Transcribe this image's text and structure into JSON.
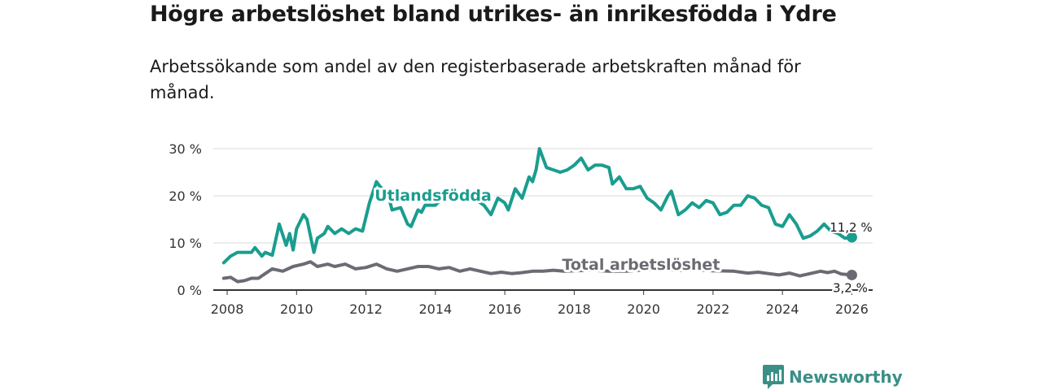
{
  "title": "Högre arbetslöshet bland utrikes- än inrikesfödda i Ydre",
  "subtitle": "Arbetssökande som andel av den registerbaserade arbetskraften månad för månad.",
  "brand": {
    "name": "Newsworthy",
    "icon": "newsworthy-logo-icon",
    "color": "#3a8f86"
  },
  "chart_data": {
    "type": "line",
    "title": "Högre arbetslöshet bland utrikes- än inrikesfödda i Ydre",
    "xlabel": "",
    "ylabel": "",
    "xlim": [
      2007.6,
      2026.6
    ],
    "ylim": [
      0,
      30
    ],
    "grid": true,
    "yticks": [
      {
        "value": 0,
        "label": "0 %"
      },
      {
        "value": 10,
        "label": "10 %"
      },
      {
        "value": 20,
        "label": "20 %"
      },
      {
        "value": 30,
        "label": "30 %"
      }
    ],
    "xticks": [
      "2008",
      "2010",
      "2012",
      "2014",
      "2016",
      "2018",
      "2020",
      "2022",
      "2024",
      "2026"
    ],
    "series": [
      {
        "name": "Utlandsfödda",
        "color": "#1a9d8f",
        "end_label": "11,2 %",
        "points": [
          [
            2007.9,
            5.8
          ],
          [
            2008.1,
            7.2
          ],
          [
            2008.3,
            8.0
          ],
          [
            2008.5,
            8.0
          ],
          [
            2008.7,
            8.0
          ],
          [
            2008.8,
            9.0
          ],
          [
            2009.0,
            7.2
          ],
          [
            2009.1,
            8.0
          ],
          [
            2009.3,
            7.4
          ],
          [
            2009.5,
            14.0
          ],
          [
            2009.7,
            9.5
          ],
          [
            2009.8,
            12.0
          ],
          [
            2009.9,
            8.5
          ],
          [
            2010.0,
            13.0
          ],
          [
            2010.2,
            16.0
          ],
          [
            2010.3,
            15.0
          ],
          [
            2010.5,
            8.0
          ],
          [
            2010.6,
            11.0
          ],
          [
            2010.8,
            12.0
          ],
          [
            2010.9,
            13.5
          ],
          [
            2011.1,
            12.0
          ],
          [
            2011.3,
            13.0
          ],
          [
            2011.5,
            12.0
          ],
          [
            2011.7,
            13.0
          ],
          [
            2011.9,
            12.5
          ],
          [
            2012.1,
            18.5
          ],
          [
            2012.3,
            23.0
          ],
          [
            2012.4,
            22.0
          ],
          [
            2012.55,
            21.0
          ],
          [
            2012.7,
            18.5
          ],
          [
            2012.75,
            17.0
          ],
          [
            2013.0,
            17.5
          ],
          [
            2013.2,
            14.0
          ],
          [
            2013.3,
            13.5
          ],
          [
            2013.5,
            17.0
          ],
          [
            2013.6,
            16.5
          ],
          [
            2013.7,
            18.0
          ],
          [
            2014.0,
            18.0
          ],
          [
            2014.2,
            19.5
          ],
          [
            2014.4,
            20.0
          ],
          [
            2015.0,
            20.0
          ],
          [
            2015.4,
            18.0
          ],
          [
            2015.6,
            16.0
          ],
          [
            2015.8,
            19.5
          ],
          [
            2016.0,
            18.5
          ],
          [
            2016.1,
            17.0
          ],
          [
            2016.3,
            21.5
          ],
          [
            2016.5,
            19.5
          ],
          [
            2016.7,
            24.0
          ],
          [
            2016.8,
            23.0
          ],
          [
            2016.9,
            25.5
          ],
          [
            2017.0,
            30.0
          ],
          [
            2017.2,
            26.0
          ],
          [
            2017.4,
            25.5
          ],
          [
            2017.6,
            25.0
          ],
          [
            2017.8,
            25.5
          ],
          [
            2018.0,
            26.5
          ],
          [
            2018.2,
            28.0
          ],
          [
            2018.4,
            25.5
          ],
          [
            2018.6,
            26.5
          ],
          [
            2018.8,
            26.5
          ],
          [
            2019.0,
            26.0
          ],
          [
            2019.1,
            22.5
          ],
          [
            2019.3,
            24.0
          ],
          [
            2019.5,
            21.5
          ],
          [
            2019.7,
            21.5
          ],
          [
            2019.9,
            22.0
          ],
          [
            2020.1,
            19.5
          ],
          [
            2020.3,
            18.5
          ],
          [
            2020.5,
            17.0
          ],
          [
            2020.7,
            20.0
          ],
          [
            2020.8,
            21.0
          ],
          [
            2021.0,
            16.0
          ],
          [
            2021.2,
            17.0
          ],
          [
            2021.4,
            18.5
          ],
          [
            2021.6,
            17.5
          ],
          [
            2021.8,
            19.0
          ],
          [
            2022.0,
            18.5
          ],
          [
            2022.2,
            16.0
          ],
          [
            2022.4,
            16.5
          ],
          [
            2022.6,
            18.0
          ],
          [
            2022.8,
            18.0
          ],
          [
            2023.0,
            20.0
          ],
          [
            2023.2,
            19.5
          ],
          [
            2023.4,
            18.0
          ],
          [
            2023.6,
            17.5
          ],
          [
            2023.8,
            14.0
          ],
          [
            2024.0,
            13.5
          ],
          [
            2024.2,
            16.0
          ],
          [
            2024.4,
            14.0
          ],
          [
            2024.6,
            11.0
          ],
          [
            2024.8,
            11.5
          ],
          [
            2025.0,
            12.5
          ],
          [
            2025.2,
            14.0
          ],
          [
            2025.4,
            12.5
          ],
          [
            2025.6,
            12.0
          ],
          [
            2025.8,
            11.0
          ],
          [
            2026.0,
            11.2
          ]
        ]
      },
      {
        "name": "Total arbetslöshet",
        "color": "#6b6b73",
        "end_label": "3,2 %",
        "points": [
          [
            2007.9,
            2.5
          ],
          [
            2008.1,
            2.7
          ],
          [
            2008.3,
            1.8
          ],
          [
            2008.5,
            2.0
          ],
          [
            2008.7,
            2.5
          ],
          [
            2008.9,
            2.5
          ],
          [
            2009.1,
            3.5
          ],
          [
            2009.3,
            4.5
          ],
          [
            2009.6,
            4.0
          ],
          [
            2009.9,
            5.0
          ],
          [
            2010.2,
            5.5
          ],
          [
            2010.4,
            6.0
          ],
          [
            2010.6,
            5.0
          ],
          [
            2010.9,
            5.5
          ],
          [
            2011.1,
            5.0
          ],
          [
            2011.4,
            5.5
          ],
          [
            2011.7,
            4.5
          ],
          [
            2012.0,
            4.8
          ],
          [
            2012.3,
            5.5
          ],
          [
            2012.6,
            4.5
          ],
          [
            2012.9,
            4.0
          ],
          [
            2013.2,
            4.5
          ],
          [
            2013.5,
            5.0
          ],
          [
            2013.8,
            5.0
          ],
          [
            2014.1,
            4.5
          ],
          [
            2014.4,
            4.8
          ],
          [
            2014.7,
            4.0
          ],
          [
            2015.0,
            4.5
          ],
          [
            2015.3,
            4.0
          ],
          [
            2015.6,
            3.5
          ],
          [
            2015.9,
            3.8
          ],
          [
            2016.2,
            3.5
          ],
          [
            2016.5,
            3.7
          ],
          [
            2016.8,
            4.0
          ],
          [
            2017.1,
            4.0
          ],
          [
            2017.4,
            4.2
          ],
          [
            2017.7,
            4.0
          ],
          [
            2018.0,
            4.1
          ],
          [
            2018.5,
            4.2
          ],
          [
            2019.0,
            4.0
          ],
          [
            2019.5,
            4.0
          ],
          [
            2020.0,
            4.3
          ],
          [
            2020.5,
            4.4
          ],
          [
            2021.0,
            4.2
          ],
          [
            2021.5,
            4.3
          ],
          [
            2022.0,
            4.1
          ],
          [
            2022.6,
            4.0
          ],
          [
            2023.0,
            3.6
          ],
          [
            2023.3,
            3.8
          ],
          [
            2023.6,
            3.5
          ],
          [
            2023.9,
            3.2
          ],
          [
            2024.2,
            3.6
          ],
          [
            2024.5,
            3.0
          ],
          [
            2024.8,
            3.5
          ],
          [
            2025.1,
            4.0
          ],
          [
            2025.3,
            3.7
          ],
          [
            2025.5,
            4.0
          ],
          [
            2025.7,
            3.4
          ],
          [
            2026.0,
            3.2
          ]
        ]
      }
    ]
  }
}
